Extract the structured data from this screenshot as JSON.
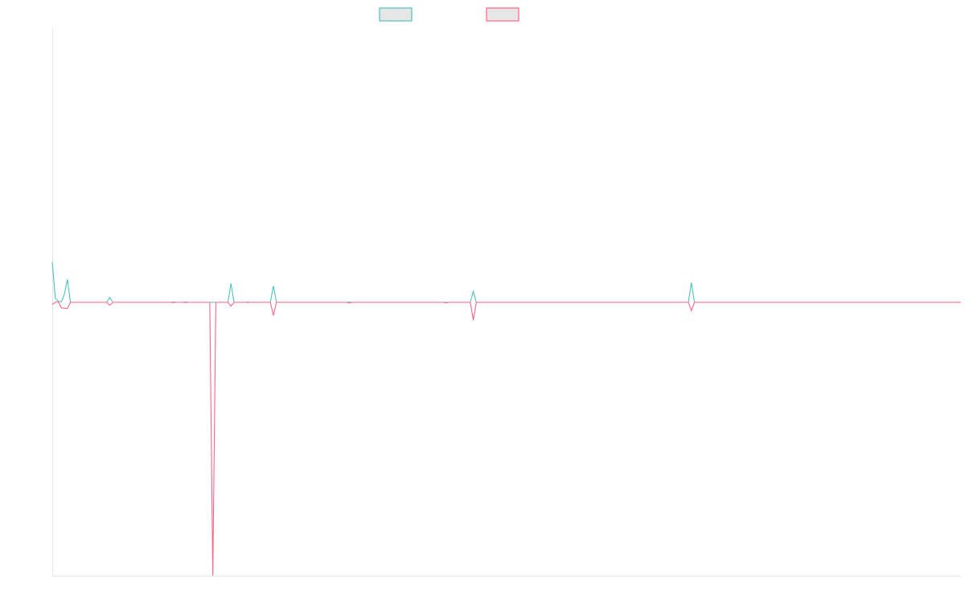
{
  "chart_data": {
    "type": "line",
    "title": "",
    "xlabel": "",
    "ylabel": "",
    "x_count": 301,
    "ylim": [
      -100,
      100
    ],
    "grid": false,
    "legend_position": "top-center",
    "series": [
      {
        "name": "",
        "color": "#4bc0c0",
        "fill": "#e6e6e6",
        "points": [
          [
            0,
            14.7
          ],
          [
            1,
            1.5
          ],
          [
            2,
            0.3
          ],
          [
            3,
            0.2
          ],
          [
            4,
            2.9
          ],
          [
            5,
            8.4
          ],
          [
            6,
            0
          ],
          [
            7,
            0
          ],
          [
            18,
            0
          ],
          [
            19,
            1.8
          ],
          [
            20,
            0
          ],
          [
            21,
            0
          ],
          [
            39,
            0
          ],
          [
            40,
            0.1
          ],
          [
            41,
            0
          ],
          [
            43,
            0
          ],
          [
            44,
            0.1
          ],
          [
            45,
            0
          ],
          [
            52,
            0
          ],
          [
            53,
            0
          ],
          [
            54,
            0
          ],
          [
            55,
            0
          ],
          [
            56,
            0
          ],
          [
            57,
            0
          ],
          [
            58,
            0
          ],
          [
            59,
            6.9
          ],
          [
            60,
            0
          ],
          [
            64,
            0
          ],
          [
            64.5,
            0.1
          ],
          [
            65,
            0
          ],
          [
            72,
            0
          ],
          [
            73,
            6.0
          ],
          [
            74,
            0
          ],
          [
            75,
            0
          ],
          [
            77,
            0
          ],
          [
            77.5,
            0
          ],
          [
            78,
            0
          ],
          [
            97,
            0
          ],
          [
            98,
            0.1
          ],
          [
            99,
            0
          ],
          [
            129,
            0
          ],
          [
            130,
            0
          ],
          [
            131,
            0
          ],
          [
            138,
            0
          ],
          [
            139,
            4.0
          ],
          [
            140,
            0
          ],
          [
            210,
            0
          ],
          [
            211,
            7.2
          ],
          [
            212,
            0
          ],
          [
            300,
            0
          ]
        ]
      },
      {
        "name": "",
        "color": "#ff6384",
        "fill": "#e6e6e6",
        "points": [
          [
            0,
            -0.8
          ],
          [
            1,
            0
          ],
          [
            2,
            0.2
          ],
          [
            3,
            -2.0
          ],
          [
            4,
            -2.2
          ],
          [
            5,
            -2.3
          ],
          [
            6,
            0
          ],
          [
            7,
            0
          ],
          [
            18,
            0
          ],
          [
            19,
            -1.1
          ],
          [
            20,
            0
          ],
          [
            21,
            0
          ],
          [
            39,
            0
          ],
          [
            40,
            -0.1
          ],
          [
            41,
            0
          ],
          [
            43,
            0
          ],
          [
            44,
            -0.1
          ],
          [
            45,
            0
          ],
          [
            52,
            0
          ],
          [
            53,
            -100
          ],
          [
            54,
            0
          ],
          [
            55,
            0
          ],
          [
            56,
            0
          ],
          [
            57,
            0
          ],
          [
            58,
            0
          ],
          [
            59,
            -1.4
          ],
          [
            60,
            0
          ],
          [
            64,
            0
          ],
          [
            64.5,
            -0.1
          ],
          [
            65,
            0
          ],
          [
            72,
            0
          ],
          [
            73,
            -4.8
          ],
          [
            74,
            0
          ],
          [
            75,
            0
          ],
          [
            77,
            0
          ],
          [
            77.5,
            0
          ],
          [
            78,
            0
          ],
          [
            97,
            0
          ],
          [
            98,
            -0.2
          ],
          [
            99,
            0
          ],
          [
            129,
            0
          ],
          [
            130,
            -0.2
          ],
          [
            131,
            0
          ],
          [
            138,
            0
          ],
          [
            139,
            -6.5
          ],
          [
            140,
            0
          ],
          [
            210,
            0
          ],
          [
            211,
            -3.1
          ],
          [
            212,
            0
          ],
          [
            300,
            0
          ]
        ]
      }
    ]
  }
}
